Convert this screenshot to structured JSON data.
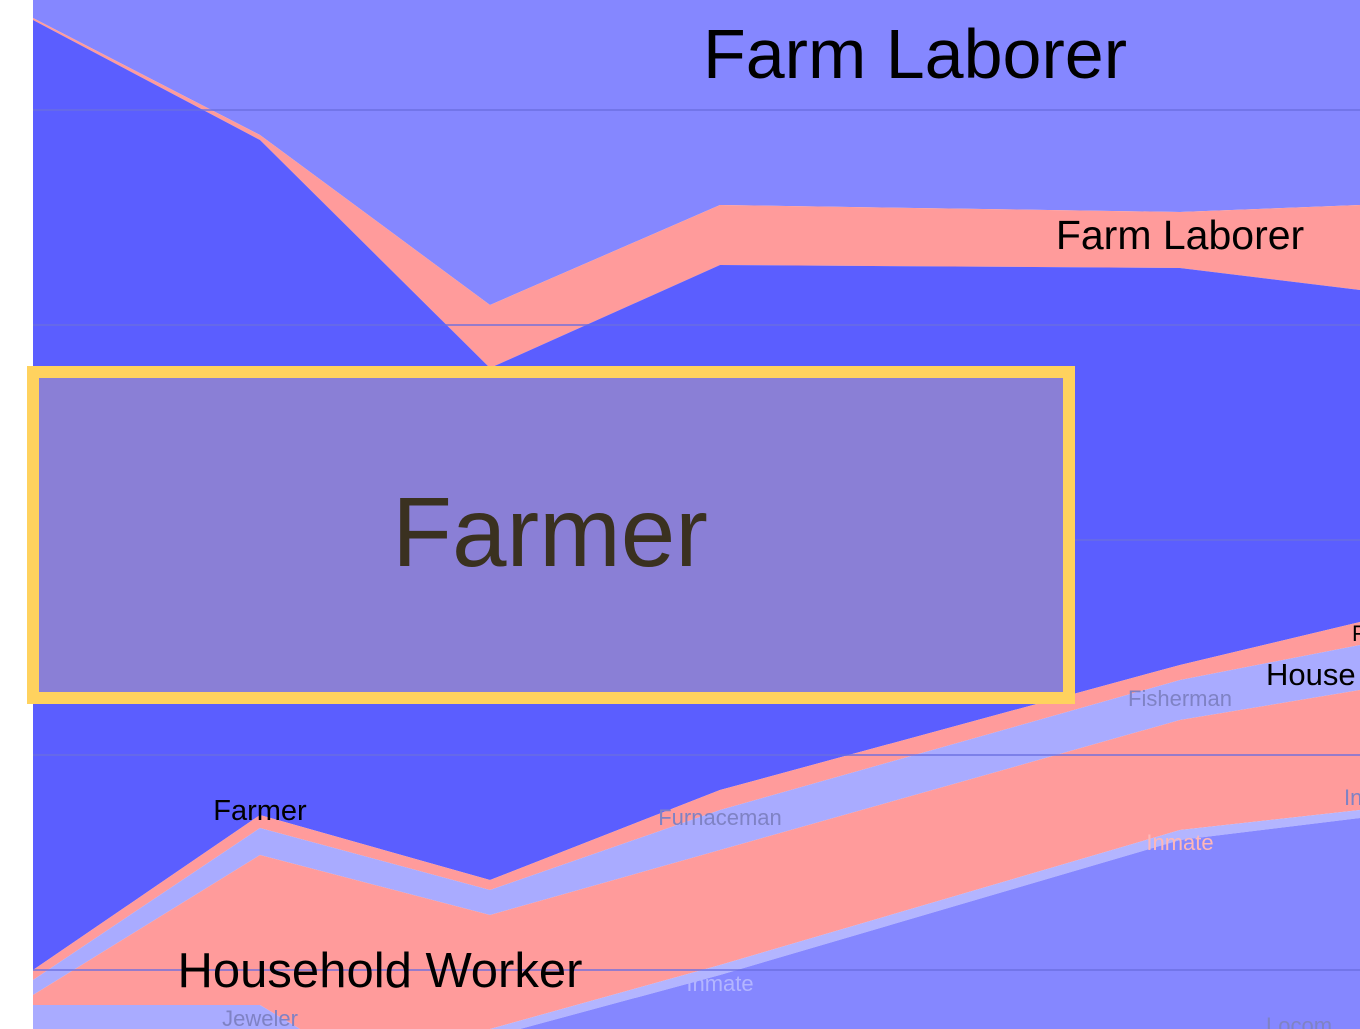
{
  "chart_data": {
    "type": "area",
    "title": "",
    "xlabel": "",
    "ylabel": "",
    "grid": true,
    "colors": {
      "male": "#8587ff",
      "male_dark": "#5b5eff",
      "female": "#ff9b9b",
      "grid": "#6a6de0",
      "highlight_fill": "#8a7fd6",
      "highlight_stroke": "#ffd25e",
      "label_dark": "#000000",
      "label_faint": "#7f82c4"
    },
    "series": [
      {
        "name": "Farm Laborer",
        "sex": "male"
      },
      {
        "name": "Farm Laborer",
        "sex": "female"
      },
      {
        "name": "Farmer",
        "sex": "male"
      },
      {
        "name": "Fisherman",
        "sex": "male"
      },
      {
        "name": "Furnaceman",
        "sex": "male"
      },
      {
        "name": "Household Worker",
        "sex": "female"
      },
      {
        "name": "Inmate",
        "sex": "male"
      },
      {
        "name": "Jeweler",
        "sex": "male"
      }
    ],
    "labels": [
      {
        "text": "Farm Laborer",
        "style": "large"
      },
      {
        "text": "Farm Laborer",
        "style": "medium"
      },
      {
        "text": "Farmer",
        "style": "highlight"
      },
      {
        "text": "Fisherman",
        "style": "faint"
      },
      {
        "text": "House",
        "style": "medium-clipped"
      },
      {
        "text": "F",
        "style": "small-clipped"
      },
      {
        "text": "In",
        "style": "faint-clipped"
      },
      {
        "text": "Farmer",
        "style": "small"
      },
      {
        "text": "Furnaceman",
        "style": "faint"
      },
      {
        "text": "Inmate",
        "style": "faint"
      },
      {
        "text": "Household Worker",
        "style": "large"
      },
      {
        "text": "Inmate",
        "style": "faint"
      },
      {
        "text": "Jeweler",
        "style": "faint"
      },
      {
        "text": "Locom",
        "style": "faint-clipped"
      }
    ]
  }
}
